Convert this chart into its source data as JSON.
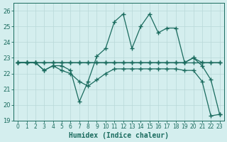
{
  "xlabel": "Humidex (Indice chaleur)",
  "bg_color": "#d4eeee",
  "line_color": "#1a6b5e",
  "grid_color": "#b8d8d8",
  "xlim": [
    -0.5,
    23.5
  ],
  "ylim": [
    19,
    26.5
  ],
  "yticks": [
    19,
    20,
    21,
    22,
    23,
    24,
    25,
    26
  ],
  "xticks": [
    0,
    1,
    2,
    3,
    4,
    5,
    6,
    7,
    8,
    9,
    10,
    11,
    12,
    13,
    14,
    15,
    16,
    17,
    18,
    19,
    20,
    21,
    22,
    23
  ],
  "series": [
    {
      "x": [
        0,
        1,
        2,
        3,
        4,
        5,
        6,
        7,
        8,
        9,
        10,
        11,
        12,
        13,
        14,
        15,
        16,
        17,
        18,
        19,
        20,
        21,
        22,
        23
      ],
      "y": [
        22.7,
        22.7,
        22.7,
        22.7,
        22.7,
        22.7,
        22.7,
        22.7,
        22.7,
        22.7,
        22.7,
        22.7,
        22.7,
        22.7,
        22.7,
        22.7,
        22.7,
        22.7,
        22.7,
        22.7,
        22.7,
        22.7,
        22.7,
        22.7
      ]
    },
    {
      "x": [
        0,
        1,
        2,
        3,
        4,
        5,
        6,
        7,
        8,
        9,
        10,
        11,
        12,
        13,
        14,
        15,
        16,
        17,
        18,
        19,
        20,
        21,
        22,
        23
      ],
      "y": [
        22.7,
        22.7,
        22.7,
        22.7,
        22.7,
        22.7,
        22.7,
        22.7,
        22.7,
        22.7,
        22.7,
        22.7,
        22.7,
        22.7,
        22.7,
        22.7,
        22.7,
        22.7,
        22.7,
        22.7,
        23.0,
        22.7,
        22.7,
        22.7
      ]
    },
    {
      "x": [
        0,
        1,
        2,
        3,
        4,
        5,
        6,
        7,
        8,
        9,
        10,
        11,
        12,
        13,
        14,
        15,
        16,
        17,
        18,
        19,
        20,
        21,
        22,
        23
      ],
      "y": [
        22.7,
        22.7,
        22.7,
        22.2,
        22.5,
        22.5,
        22.2,
        20.2,
        21.5,
        23.1,
        23.6,
        25.3,
        25.8,
        23.6,
        25.0,
        25.8,
        24.6,
        24.9,
        24.9,
        22.7,
        23.0,
        22.5,
        21.6,
        19.4
      ]
    },
    {
      "x": [
        0,
        1,
        2,
        3,
        4,
        5,
        6,
        7,
        8,
        9,
        10,
        11,
        12,
        13,
        14,
        15,
        16,
        17,
        18,
        19,
        20,
        21,
        22,
        23
      ],
      "y": [
        22.7,
        22.7,
        22.7,
        22.2,
        22.5,
        22.2,
        22.0,
        21.5,
        21.2,
        21.6,
        22.0,
        22.3,
        22.3,
        22.3,
        22.3,
        22.3,
        22.3,
        22.3,
        22.3,
        22.2,
        22.2,
        21.5,
        19.3,
        19.4
      ]
    }
  ]
}
